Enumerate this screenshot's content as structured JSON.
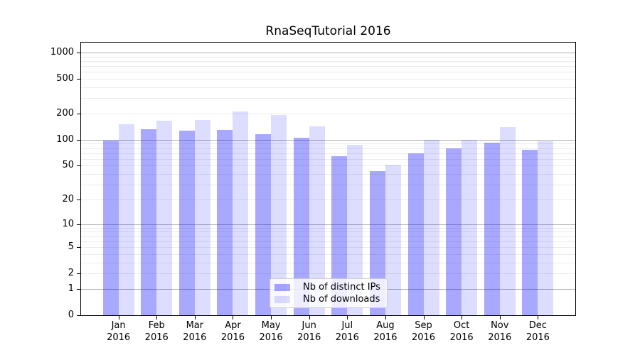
{
  "title": "RnaSeqTutorial 2016",
  "chart_data": {
    "type": "bar",
    "title": "RnaSeqTutorial 2016",
    "xlabel": "",
    "ylabel": "",
    "yscale": "log1p",
    "grid": true,
    "ylim": [
      0,
      1326
    ],
    "y_ticks": [
      0,
      1,
      2,
      5,
      10,
      20,
      50,
      100,
      200,
      500,
      1000
    ],
    "categories": [
      [
        "Jan",
        "2016"
      ],
      [
        "Feb",
        "2016"
      ],
      [
        "Mar",
        "2016"
      ],
      [
        "Apr",
        "2016"
      ],
      [
        "May",
        "2016"
      ],
      [
        "Jun",
        "2016"
      ],
      [
        "Jul",
        "2016"
      ],
      [
        "Aug",
        "2016"
      ],
      [
        "Sep",
        "2016"
      ],
      [
        "Oct",
        "2016"
      ],
      [
        "Nov",
        "2016"
      ],
      [
        "Dec",
        "2016"
      ]
    ],
    "series": [
      {
        "name": "Nb of distinct IPs",
        "color": "rgba(0,0,255,0.34)",
        "values": [
          98,
          132,
          127,
          130,
          116,
          105,
          65,
          43,
          70,
          80,
          93,
          76
        ]
      },
      {
        "name": "Nb of downloads",
        "color": "rgba(0,0,255,0.135)",
        "values": [
          150,
          166,
          169,
          210,
          192,
          144,
          88,
          51,
          100,
          100,
          140,
          97
        ]
      }
    ],
    "legend_position": "lower center",
    "gridline_major_color": "#b0b0b0",
    "gridline_minor_color": "#ebebeb"
  },
  "legend": {
    "items": [
      {
        "label": "Nb of distinct IPs",
        "color": "rgba(0,0,255,0.34)"
      },
      {
        "label": "Nb of downloads",
        "color": "rgba(0,0,255,0.135)"
      }
    ]
  }
}
